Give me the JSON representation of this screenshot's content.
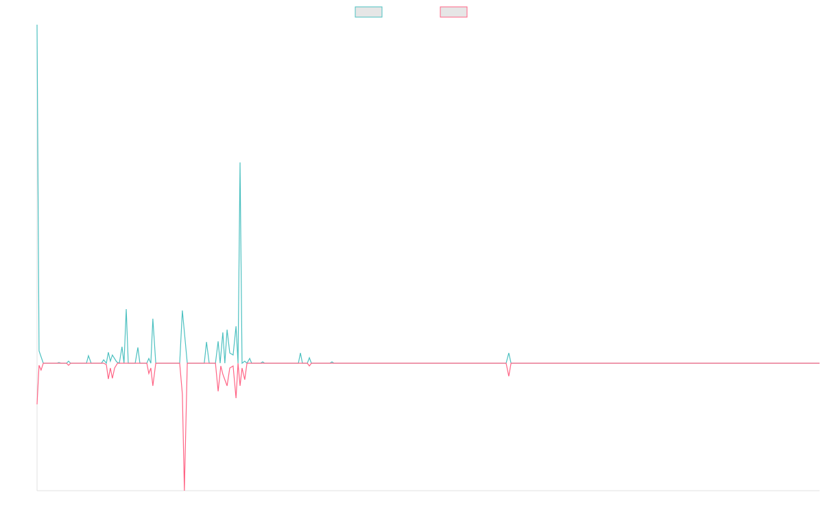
{
  "chart_data": {
    "type": "line",
    "xlim": [
      0,
      350
    ],
    "ylim": [
      -186,
      494
    ],
    "grid": false,
    "legend": "top",
    "series": [
      {
        "color": "#4bc0c0",
        "x": [
          0,
          0.9,
          2.8,
          8.9,
          9.8,
          10.7,
          13.2,
          14.1,
          15,
          22.1,
          23,
          24.2,
          28.8,
          29.8,
          31,
          31.9,
          32.8,
          33.7,
          35.6,
          36.8,
          38,
          38.9,
          39.9,
          40.8,
          43.9,
          45.1,
          46,
          49.1,
          50,
          50.9,
          51.8,
          53.1,
          63.8,
          65,
          67.2,
          74.8,
          75.8,
          77,
          79.8,
          81,
          81.9,
          83.1,
          84,
          85,
          86.2,
          87.7,
          89,
          89.9,
          90.8,
          91.7,
          92.9,
          93.9,
          95.1,
          96,
          100,
          100.9,
          101.8,
          116.9,
          117.8,
          118.7,
          120.9,
          121.8,
          122.7,
          131,
          131.9,
          132.8,
          209.8,
          211,
          212,
          350
        ],
        "values": [
          494,
          18,
          0,
          0,
          1,
          0,
          0,
          3,
          0,
          0,
          11,
          0,
          0,
          5,
          0,
          16,
          3,
          12,
          2,
          0,
          24,
          0,
          79,
          0,
          0,
          23,
          0,
          0,
          7,
          0,
          65,
          0,
          0,
          77,
          0,
          0,
          31,
          0,
          0,
          32,
          0,
          45,
          0,
          49,
          15,
          12,
          54,
          0,
          293,
          0,
          3,
          0,
          7,
          0,
          0,
          2,
          0,
          0,
          15,
          0,
          0,
          8,
          0,
          0,
          2,
          0,
          0,
          15,
          0,
          0
        ]
      },
      {
        "color": "#ff6384",
        "x": [
          0,
          0.9,
          1.8,
          2.8,
          13.2,
          14.1,
          15,
          29.8,
          31,
          31.9,
          32.8,
          33.7,
          34.7,
          36,
          49.1,
          50,
          50.9,
          51.8,
          53.1,
          63.8,
          65,
          65.9,
          67.2,
          79.8,
          81,
          82.2,
          83.1,
          85,
          86.2,
          87.7,
          89,
          89.9,
          90.8,
          91.7,
          92.9,
          93.9,
          120.9,
          121.8,
          122.7,
          209.8,
          211,
          212,
          350
        ],
        "values": [
          -60,
          -3,
          -10,
          0,
          0,
          -3,
          0,
          0,
          -2,
          -23,
          -7,
          -22,
          -7,
          0,
          0,
          -15,
          -7,
          -33,
          0,
          0,
          -45,
          -186,
          0,
          0,
          -41,
          -4,
          -16,
          -33,
          -7,
          -4,
          -51,
          0,
          -33,
          -7,
          -24,
          0,
          0,
          -4,
          0,
          0,
          -19,
          0,
          0
        ]
      }
    ]
  }
}
